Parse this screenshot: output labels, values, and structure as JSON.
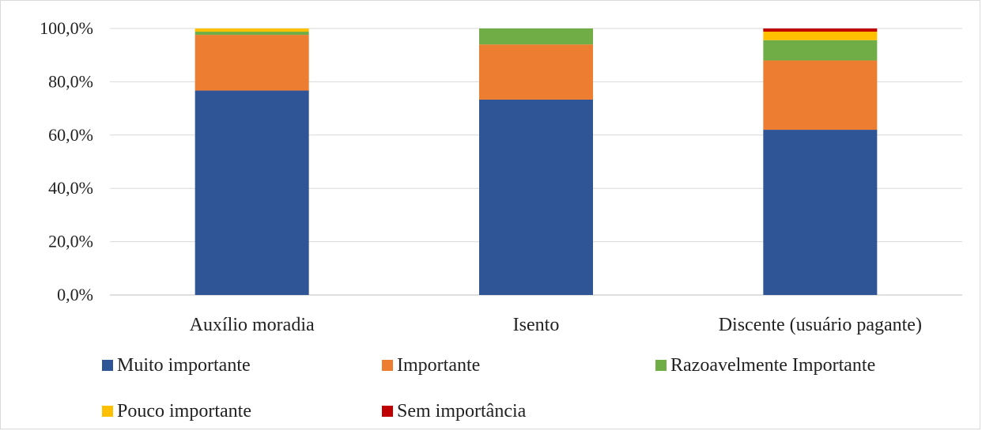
{
  "chart_data": {
    "type": "bar",
    "stacked": true,
    "categories": [
      "Auxílio moradia",
      "Isento",
      "Discente (usuário pagante)"
    ],
    "series": [
      {
        "name": "Muito importante",
        "color": "#2f5597",
        "values": [
          76.7,
          73.3,
          62.0
        ]
      },
      {
        "name": "Importante",
        "color": "#ed7d31",
        "values": [
          20.9,
          20.7,
          26.0
        ]
      },
      {
        "name": "Razoavelmente Importante",
        "color": "#70ad47",
        "values": [
          1.2,
          6.0,
          7.6
        ]
      },
      {
        "name": "Pouco importante",
        "color": "#ffc000",
        "values": [
          1.2,
          0.0,
          3.2
        ]
      },
      {
        "name": "Sem importância",
        "color": "#c00000",
        "values": [
          0.0,
          0.0,
          1.2
        ]
      }
    ],
    "ylim": [
      0,
      100
    ],
    "yticks": [
      0,
      20,
      40,
      60,
      80,
      100
    ],
    "ytick_labels": [
      "0,0%",
      "20,0%",
      "40,0%",
      "60,0%",
      "80,0%",
      "100,0%"
    ],
    "grid": true,
    "legend_position": "bottom",
    "title": "",
    "xlabel": "",
    "ylabel": ""
  }
}
